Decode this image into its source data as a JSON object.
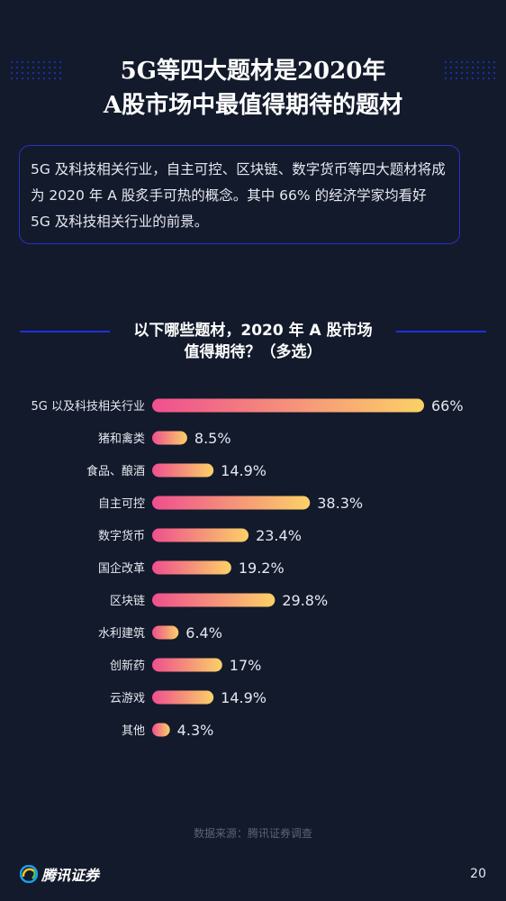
{
  "title_lines": [
    "5G等四大题材是2020年",
    "A股市场中最值得期待的题材"
  ],
  "intro_text": "5G 及科技相关行业，自主可控、区块链、数字货币等四大题材将成为 2020 年 A 股炙手可热的概念。其中 66% 的经济学家均看好 5G 及科技相关行业的前景。",
  "question_lines": [
    "以下哪些题材，2020 年 A 股市场",
    "值得期待？（多选）"
  ],
  "source": "数据来源：腾讯证券调查",
  "logo_text": "腾讯证券",
  "page_number": "20",
  "colors": {
    "background": "#131a2b",
    "accent": "#1f2fe0",
    "bar_start": "#ef4f8e",
    "bar_end": "#fbd167"
  },
  "chart_data": {
    "type": "bar",
    "orientation": "horizontal",
    "categories": [
      "5G 以及科技相关行业",
      "猪和禽类",
      "食品、酿酒",
      "自主可控",
      "数字货币",
      "国企改革",
      "区块链",
      "水利建筑",
      "创新药",
      "云游戏",
      "其他"
    ],
    "values": [
      66,
      8.5,
      14.9,
      38.3,
      23.4,
      19.2,
      29.8,
      6.4,
      17,
      14.9,
      4.3
    ],
    "value_labels": [
      "66%",
      "8.5%",
      "14.9%",
      "38.3%",
      "23.4%",
      "19.2%",
      "29.8%",
      "6.4%",
      "17%",
      "14.9%",
      "4.3%"
    ],
    "unit": "%",
    "xlim": [
      0,
      66
    ]
  }
}
